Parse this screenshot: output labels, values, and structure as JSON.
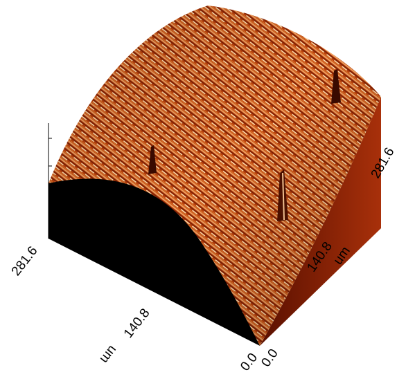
{
  "axes": {
    "x": {
      "ticks": [
        "0.0",
        "140.8",
        "281.6"
      ],
      "unit": "um"
    },
    "y": {
      "ticks": [
        "0.0",
        "140.8",
        "281.6"
      ],
      "unit": "um"
    }
  }
}
